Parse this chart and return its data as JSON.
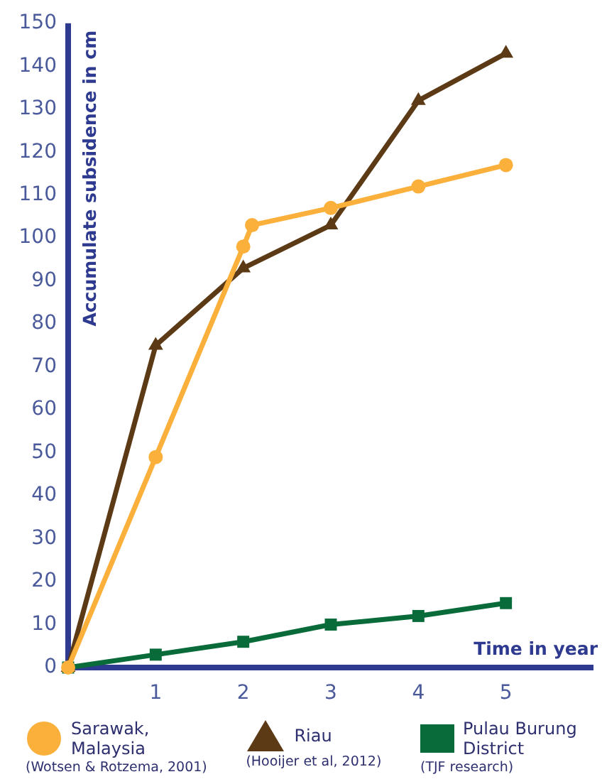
{
  "chart_data": {
    "type": "line",
    "xlabel": "Time in year",
    "ylabel": "Accumulate subsidence in cm",
    "xlim": [
      0,
      6
    ],
    "xticks": [
      1,
      2,
      3,
      4,
      5
    ],
    "ylim": [
      0,
      150
    ],
    "yticks": [
      0,
      10,
      20,
      30,
      40,
      50,
      60,
      70,
      80,
      90,
      100,
      110,
      120,
      130,
      140,
      150
    ],
    "grid": false,
    "legend": "bottom",
    "line_style": "solid",
    "series": [
      {
        "name": "Sarawak, Malaysia",
        "color": "#fbb03b",
        "marker": "circle",
        "x": [
          0,
          1,
          2,
          2.1,
          3,
          4,
          5
        ],
        "values": [
          0,
          49,
          98,
          103,
          107,
          112,
          117
        ]
      },
      {
        "name": "Riau",
        "color": "#5c3a16",
        "marker": "triangle",
        "x": [
          0,
          1,
          2,
          3,
          4,
          5
        ],
        "values": [
          0,
          75,
          93,
          103,
          132,
          143
        ]
      },
      {
        "name": "Pulau Burung District",
        "color": "#0a6b3a",
        "marker": "square",
        "x": [
          0,
          1,
          2,
          3,
          4,
          5
        ],
        "values": [
          0,
          3,
          6,
          10,
          12,
          15
        ]
      }
    ],
    "annotations": [
      "(Wotsen & Rotzema, 2001)",
      "(Hooijer et al, 2012)",
      "(TJF research)"
    ]
  }
}
